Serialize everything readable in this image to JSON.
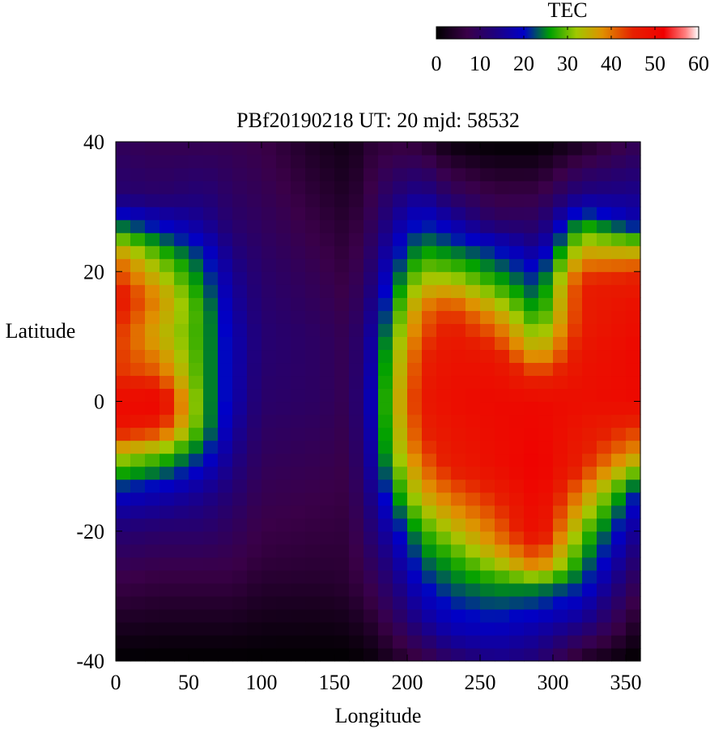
{
  "chart_data": {
    "type": "heatmap",
    "title": "PBf20190218  UT: 20  mjd: 58532",
    "xlabel": "Longitude",
    "ylabel": "Latitude",
    "xlim": [
      0,
      360
    ],
    "ylim": [
      -40,
      40
    ],
    "x_ticks": [
      0,
      50,
      100,
      150,
      200,
      250,
      300,
      350
    ],
    "y_ticks": [
      -40,
      -20,
      0,
      20,
      40
    ],
    "grid": false,
    "grid_spacing": {
      "longitude": 10,
      "latitude": 2
    },
    "colorbar": {
      "label": "TEC",
      "range": [
        0,
        60
      ],
      "ticks": [
        0,
        10,
        20,
        30,
        40,
        50,
        60
      ],
      "placement": "top-right",
      "colors": [
        {
          "value": 0,
          "color": "#000000"
        },
        {
          "value": 7,
          "color": "#3a0048"
        },
        {
          "value": 13,
          "color": "#20007a"
        },
        {
          "value": 20,
          "color": "#0000c8"
        },
        {
          "value": 26,
          "color": "#00a000"
        },
        {
          "value": 32,
          "color": "#a0c800"
        },
        {
          "value": 38,
          "color": "#e09000"
        },
        {
          "value": 45,
          "color": "#e62000"
        },
        {
          "value": 52,
          "color": "#f00000"
        },
        {
          "value": 57,
          "color": "#ff8080"
        },
        {
          "value": 60,
          "color": "#ffffff"
        }
      ]
    },
    "z_profiles_by_longitude": [
      {
        "lon": 0,
        "lat": [
          -40,
          -26,
          -20,
          -14,
          -8,
          -4,
          0,
          4,
          10,
          16,
          22,
          28,
          32,
          40
        ],
        "tec": [
          0,
          8,
          12,
          20,
          34,
          48,
          50,
          44,
          44,
          48,
          40,
          22,
          12,
          9
        ]
      },
      {
        "lon": 30,
        "lat": [
          -40,
          -26,
          -20,
          -14,
          -8,
          -4,
          0,
          4,
          10,
          16,
          22,
          28,
          32,
          40
        ],
        "tec": [
          0,
          7,
          11,
          18,
          30,
          45,
          52,
          42,
          35,
          38,
          30,
          18,
          11,
          8
        ]
      },
      {
        "lon": 60,
        "lat": [
          -40,
          -26,
          -20,
          -14,
          -8,
          -4,
          0,
          6,
          14,
          22,
          28,
          40
        ],
        "tec": [
          0,
          7,
          11,
          15,
          22,
          27,
          27,
          27,
          27,
          22,
          15,
          8
        ]
      },
      {
        "lon": 80,
        "lat": [
          -40,
          -26,
          -18,
          -10,
          0,
          10,
          20,
          28,
          40
        ],
        "tec": [
          0,
          7,
          10,
          14,
          18,
          18,
          15,
          11,
          8
        ]
      },
      {
        "lon": 100,
        "lat": [
          -40,
          -24,
          -10,
          0,
          10,
          20,
          40
        ],
        "tec": [
          0,
          6,
          9,
          11,
          12,
          11,
          7
        ]
      },
      {
        "lon": 140,
        "lat": [
          -40,
          -26,
          -10,
          0,
          10,
          20,
          40
        ],
        "tec": [
          0,
          5,
          8,
          10,
          10,
          8,
          3
        ]
      },
      {
        "lon": 160,
        "lat": [
          -40,
          -28,
          -10,
          0,
          10,
          20,
          40
        ],
        "tec": [
          0,
          5,
          7,
          8,
          8,
          6,
          2
        ]
      },
      {
        "lon": 175,
        "lat": [
          -40,
          -30,
          -20,
          -10,
          0,
          10,
          20,
          30,
          40
        ],
        "tec": [
          1,
          7,
          12,
          16,
          18,
          16,
          12,
          8,
          5
        ]
      },
      {
        "lon": 190,
        "lat": [
          -40,
          -32,
          -20,
          -14,
          -8,
          0,
          8,
          16,
          24,
          32,
          40
        ],
        "tec": [
          3,
          10,
          18,
          24,
          30,
          32,
          30,
          24,
          18,
          12,
          6
        ]
      },
      {
        "lon": 210,
        "lat": [
          -40,
          -34,
          -26,
          -20,
          -14,
          -6,
          0,
          6,
          14,
          22,
          30,
          36,
          40
        ],
        "tec": [
          6,
          15,
          22,
          27,
          36,
          44,
          47,
          45,
          40,
          28,
          18,
          10,
          5
        ]
      },
      {
        "lon": 230,
        "lat": [
          -40,
          -36,
          -30,
          -24,
          -18,
          -10,
          0,
          8,
          14,
          20,
          26,
          32,
          40
        ],
        "tec": [
          10,
          17,
          22,
          27,
          36,
          46,
          49,
          48,
          44,
          30,
          20,
          10,
          1
        ]
      },
      {
        "lon": 260,
        "lat": [
          -40,
          -34,
          -28,
          -22,
          -10,
          0,
          6,
          12,
          18,
          24,
          28,
          40
        ],
        "tec": [
          14,
          20,
          26,
          38,
          49,
          50,
          48,
          40,
          28,
          20,
          10,
          0
        ]
      },
      {
        "lon": 290,
        "lat": [
          -40,
          -34,
          -28,
          -26,
          -20,
          -10,
          0,
          4,
          8,
          14,
          20,
          26,
          40
        ],
        "tec": [
          12,
          18,
          26,
          38,
          50,
          52,
          50,
          44,
          34,
          25,
          20,
          12,
          0
        ]
      },
      {
        "lon": 320,
        "lat": [
          -40,
          -34,
          -28,
          -20,
          -10,
          0,
          6,
          12,
          18,
          26,
          32,
          40
        ],
        "tec": [
          3,
          15,
          22,
          30,
          45,
          49,
          48,
          46,
          46,
          30,
          14,
          3
        ]
      },
      {
        "lon": 355,
        "lat": [
          -40,
          -30,
          -20,
          -14,
          -8,
          0,
          8,
          16,
          20,
          24,
          28,
          40
        ],
        "tec": [
          0,
          8,
          16,
          22,
          38,
          50,
          50,
          48,
          44,
          32,
          18,
          8
        ]
      }
    ]
  }
}
